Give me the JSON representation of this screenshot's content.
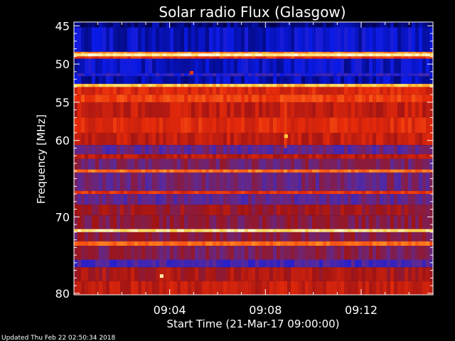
{
  "chart_data": {
    "type": "heatmap",
    "title": "Solar radio Flux (Glasgow)",
    "xlabel": "Start Time (21-Mar-17 09:00:00)",
    "ylabel": "Frequency [MHz]",
    "x_range_minutes": [
      0,
      15
    ],
    "x_ticks": [
      {
        "value": 4,
        "label": "09:04"
      },
      {
        "value": 8,
        "label": "09:08"
      },
      {
        "value": 12,
        "label": "09:12"
      }
    ],
    "y_range_mhz": [
      44.5,
      80.2
    ],
    "y_ticks": [
      {
        "value": 45,
        "label": "45"
      },
      {
        "value": 50,
        "label": "50"
      },
      {
        "value": 55,
        "label": "55"
      },
      {
        "value": 60,
        "label": "60"
      },
      {
        "value": 70,
        "label": "70"
      },
      {
        "value": 80,
        "label": "80"
      }
    ],
    "colormap": [
      "#00004a",
      "#0a1ae6",
      "#5a2a9a",
      "#a01414",
      "#e62a0a",
      "#ff6a1a",
      "#ffd040",
      "#ffffe0"
    ],
    "bands": [
      {
        "from": 44.5,
        "to": 45.2,
        "intensity": 0.05
      },
      {
        "from": 45.2,
        "to": 48.4,
        "intensity": 0.12
      },
      {
        "from": 48.4,
        "to": 48.6,
        "intensity": 0.75
      },
      {
        "from": 48.6,
        "to": 49.0,
        "intensity": 0.95
      },
      {
        "from": 49.0,
        "to": 49.3,
        "intensity": 0.6
      },
      {
        "from": 49.3,
        "to": 51.2,
        "intensity": 0.12
      },
      {
        "from": 51.2,
        "to": 51.6,
        "intensity": 0.2
      },
      {
        "from": 51.6,
        "to": 52.6,
        "intensity": 0.1
      },
      {
        "from": 52.6,
        "to": 53.0,
        "intensity": 0.85
      },
      {
        "from": 53.0,
        "to": 54.0,
        "intensity": 0.55
      },
      {
        "from": 54.0,
        "to": 55.0,
        "intensity": 0.62
      },
      {
        "from": 55.0,
        "to": 57.0,
        "intensity": 0.5
      },
      {
        "from": 57.0,
        "to": 59.0,
        "intensity": 0.56
      },
      {
        "from": 59.0,
        "to": 60.6,
        "intensity": 0.5
      },
      {
        "from": 60.6,
        "to": 61.8,
        "intensity": 0.3
      },
      {
        "from": 61.8,
        "to": 62.4,
        "intensity": 0.48
      },
      {
        "from": 62.4,
        "to": 63.8,
        "intensity": 0.35
      },
      {
        "from": 63.8,
        "to": 64.2,
        "intensity": 0.72
      },
      {
        "from": 64.2,
        "to": 66.6,
        "intensity": 0.32
      },
      {
        "from": 66.6,
        "to": 67.0,
        "intensity": 0.58
      },
      {
        "from": 67.0,
        "to": 68.4,
        "intensity": 0.3
      },
      {
        "from": 68.4,
        "to": 69.8,
        "intensity": 0.42
      },
      {
        "from": 69.8,
        "to": 71.6,
        "intensity": 0.38
      },
      {
        "from": 71.6,
        "to": 72.0,
        "intensity": 0.92
      },
      {
        "from": 72.0,
        "to": 73.2,
        "intensity": 0.38
      },
      {
        "from": 73.2,
        "to": 73.8,
        "intensity": 0.7
      },
      {
        "from": 73.8,
        "to": 75.6,
        "intensity": 0.36
      },
      {
        "from": 75.6,
        "to": 76.6,
        "intensity": 0.25
      },
      {
        "from": 76.6,
        "to": 78.4,
        "intensity": 0.45
      },
      {
        "from": 78.4,
        "to": 80.2,
        "intensity": 0.5
      }
    ],
    "spots": [
      {
        "minute": 4.9,
        "mhz": 51.1,
        "intensity": 0.6
      },
      {
        "minute": 8.85,
        "mhz": 59.4,
        "intensity": 0.85
      },
      {
        "minute": 3.65,
        "mhz": 77.7,
        "intensity": 0.95
      }
    ]
  },
  "footer": "Updated Thu Feb 22 02:50:34 2018"
}
